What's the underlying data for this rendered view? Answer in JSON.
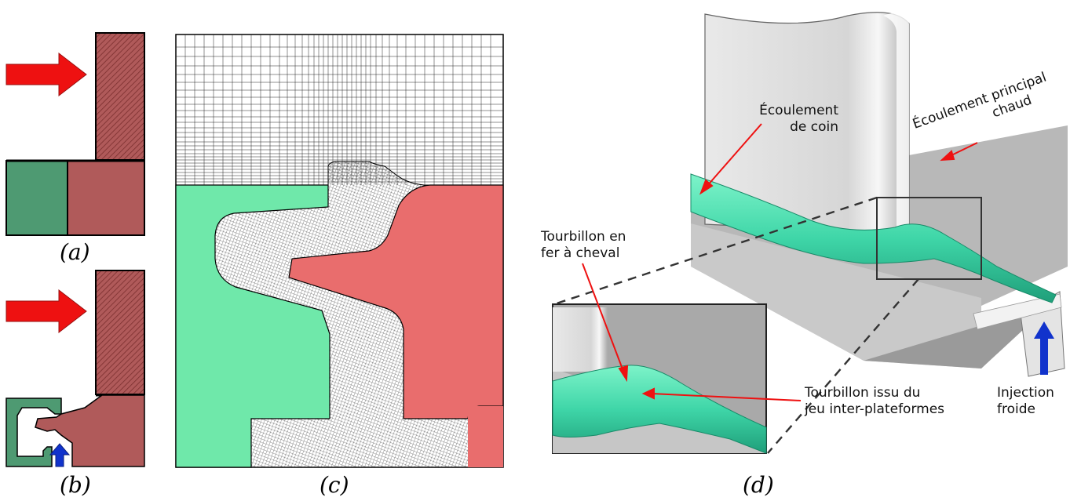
{
  "captions": {
    "a": "(a)",
    "b": "(b)",
    "c": "(c)",
    "d": "(d)"
  },
  "labels": {
    "corner_flow_line1": "Écoulement",
    "corner_flow_line2": "de coin",
    "main_flow_line1": "Écoulement principal",
    "main_flow_line2": "chaud",
    "horseshoe_line1": "Tourbillon en",
    "horseshoe_line2": "fer à cheval",
    "gap_vortex_line1": "Tourbillon issu du",
    "gap_vortex_line2": "jeu inter-plateformes",
    "injection_line1": "Injection",
    "injection_line2": "froide"
  },
  "colors": {
    "stator_green": "#4e9a72",
    "rotor_brown": "#b05a5a",
    "mesh_green": "#6fe8aa",
    "mesh_red": "#e96d6d",
    "vortex_teal": "#3fd6a8",
    "hot_flow_red": "#ee1111",
    "cold_flow_blue": "#1133cc"
  },
  "icons": {
    "hot_flow_arrow": "red-arrow-icon",
    "cold_injection_arrow": "blue-arrow-icon"
  }
}
